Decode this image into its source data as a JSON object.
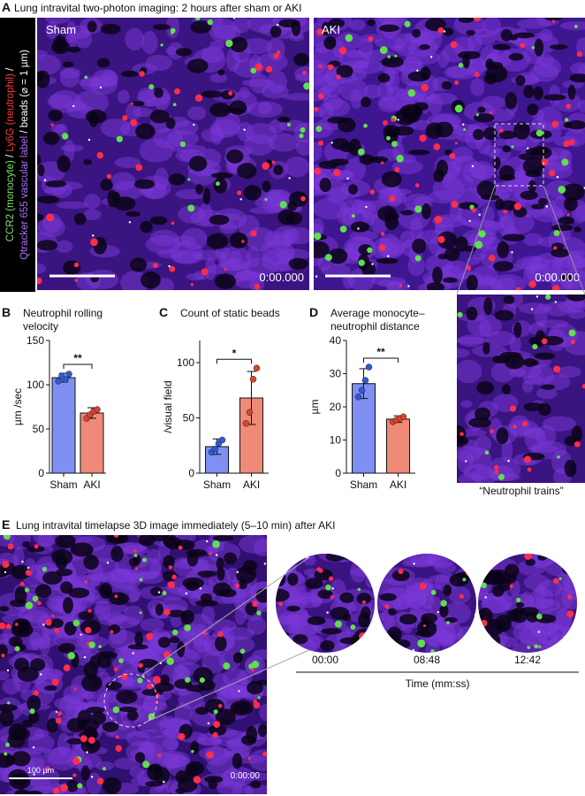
{
  "panel_a": {
    "letter": "A",
    "title": "Lung intravital two-photon imaging: 2 hours after sham or AKI",
    "side_label": [
      [
        {
          "text": "CCR2 (monocyte)",
          "color": "#7ee06a"
        },
        {
          "text": " / ",
          "color": "#ffffff"
        },
        {
          "text": "Ly6G (neutrophil)",
          "color": "#ff3b3b"
        },
        {
          "text": " /",
          "color": "#ffffff"
        }
      ],
      [
        {
          "text": "Qtracker 655 vascular label",
          "color": "#b070ff"
        },
        {
          "text": " / beads (⌀ = 1 µm)",
          "color": "#ffffff"
        }
      ]
    ],
    "images": [
      {
        "label": "Sham",
        "time": "0:00.000"
      },
      {
        "label": "AKI",
        "time": "0:00.000"
      }
    ],
    "inset_caption": "“Neutrophil trains”"
  },
  "chart_data": [
    {
      "type": "bar",
      "letter": "B",
      "title": [
        "Neutrophil rolling",
        "velocity"
      ],
      "ylabel": "µm /sec",
      "categories": [
        "Sham",
        "AKI"
      ],
      "values": [
        108,
        68
      ],
      "errors": [
        5,
        6
      ],
      "points": [
        [
          104,
          110,
          106,
          112
        ],
        [
          62,
          66,
          70,
          72
        ]
      ],
      "colors": [
        "#7f90f2",
        "#f08a78"
      ],
      "point_colors": [
        "#2e5ad6",
        "#d9442c"
      ],
      "ylim": [
        0,
        150
      ],
      "yticks": [
        0,
        50,
        100,
        150
      ],
      "significance": "**"
    },
    {
      "type": "bar",
      "letter": "C",
      "title": [
        "Count of static beads"
      ],
      "ylabel": "/visual field",
      "categories": [
        "Sham",
        "AKI"
      ],
      "values": [
        24,
        68
      ],
      "errors": [
        7,
        24
      ],
      "points": [
        [
          19,
          22,
          27,
          30
        ],
        [
          45,
          55,
          85,
          95
        ]
      ],
      "colors": [
        "#7f90f2",
        "#f08a78"
      ],
      "point_colors": [
        "#2e5ad6",
        "#d9442c"
      ],
      "ylim": [
        0,
        120
      ],
      "yticks": [
        0,
        50,
        100
      ],
      "significance": "*"
    },
    {
      "type": "bar",
      "letter": "D",
      "title": [
        "Average monocyte–",
        "neutrophil distance"
      ],
      "ylabel": "µm",
      "categories": [
        "Sham",
        "AKI"
      ],
      "values": [
        27,
        16.3
      ],
      "errors": [
        4.5,
        1
      ],
      "points": [
        [
          23,
          25,
          28,
          32
        ],
        [
          15.5,
          16,
          16.5,
          17
        ]
      ],
      "colors": [
        "#7f90f2",
        "#f08a78"
      ],
      "point_colors": [
        "#2e5ad6",
        "#d9442c"
      ],
      "ylim": [
        0,
        40
      ],
      "yticks": [
        0,
        10,
        20,
        30,
        40
      ],
      "significance": "**"
    }
  ],
  "panel_e": {
    "letter": "E",
    "title": "Lung intravital timelapse 3D image immediately (5–10 min) after AKI",
    "scale": "100 µm",
    "time": "0:00:00",
    "frames": [
      "00:00",
      "08:48",
      "12:42"
    ],
    "axis_label": "Time (mm:ss)"
  }
}
